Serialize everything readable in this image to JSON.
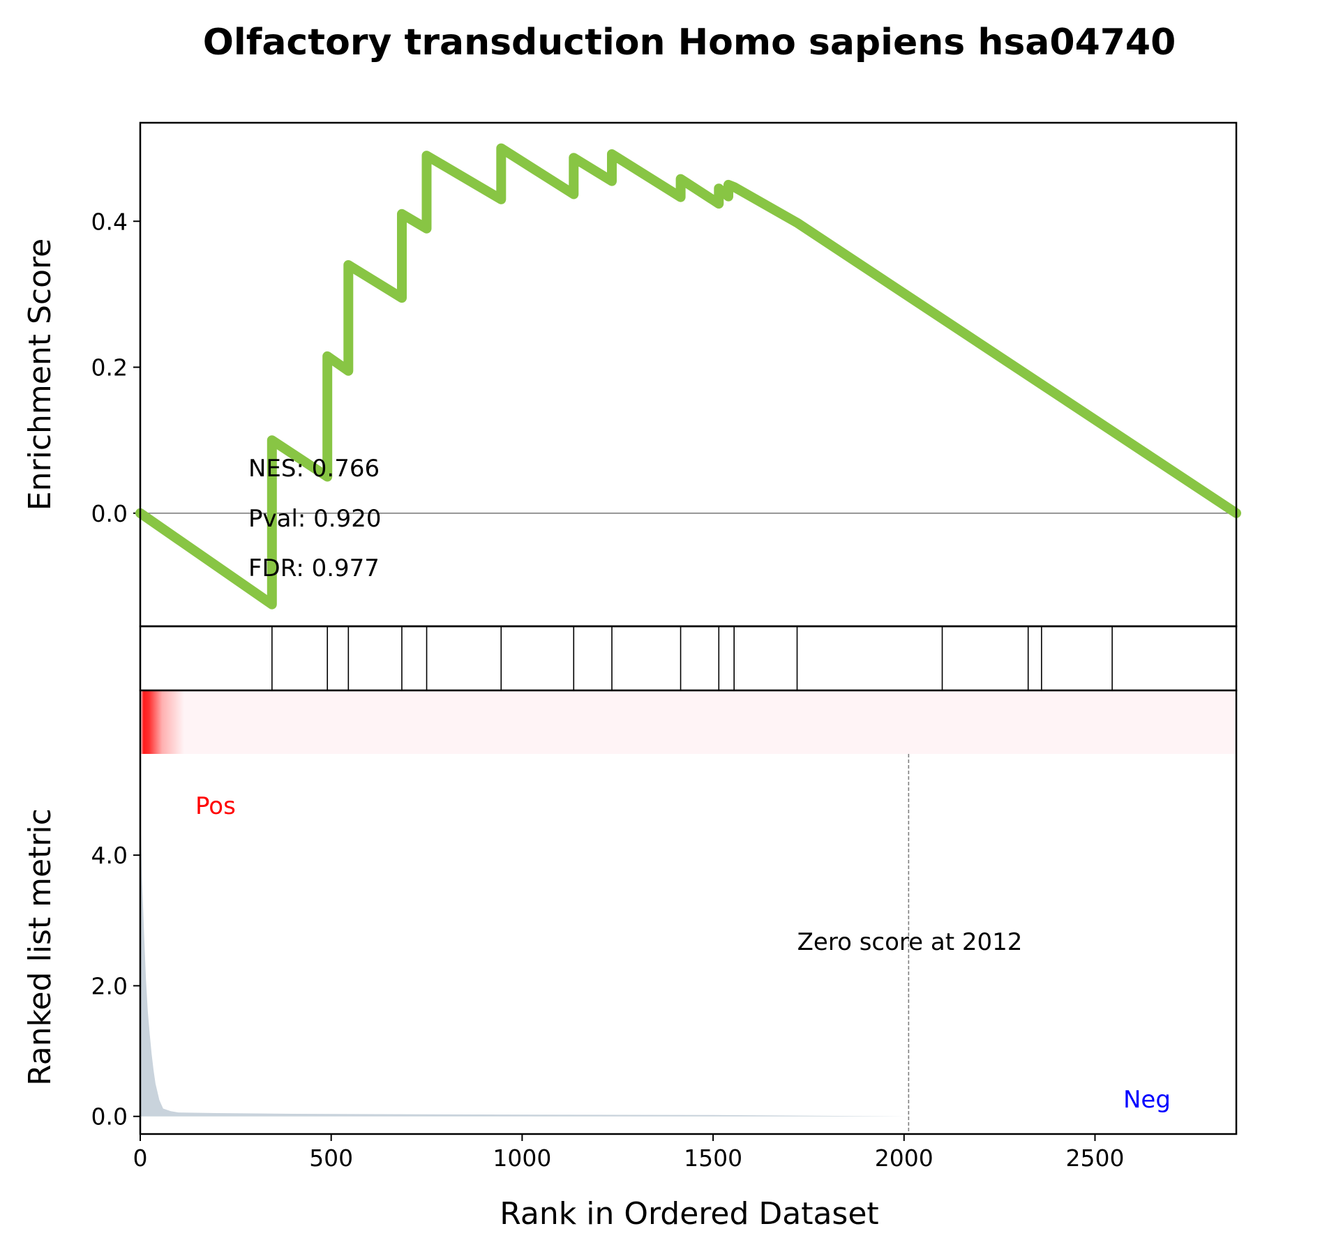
{
  "chart_data": {
    "type": "line",
    "title": "Olfactory transduction Homo sapiens hsa04740",
    "n_genes": 2870,
    "xlabel": "Rank in Ordered Dataset",
    "xlim": [
      0,
      2870
    ],
    "xticks": [
      0,
      500,
      1000,
      1500,
      2000,
      2500
    ],
    "xtick_labels": [
      "0",
      "500",
      "1000",
      "1500",
      "2000",
      "2500"
    ],
    "colors": {
      "es_line": "#88c544",
      "hits": "#000000",
      "metric_fill": "#c9d3dc",
      "pos_label": "#ff0000",
      "neg_label": "#0000ff",
      "heat_high": "#ff0000"
    },
    "es_panel": {
      "ylabel": "Enrichment Score",
      "ylim": [
        -0.155,
        0.535
      ],
      "yticks": [
        0.0,
        0.2,
        0.4
      ],
      "ytick_labels": [
        "0.0",
        "0.2",
        "0.4"
      ],
      "zero_line": true,
      "series": [
        {
          "name": "",
          "x": [
            0,
            345,
            345,
            490,
            490,
            545,
            545,
            685,
            685,
            750,
            750,
            945,
            945,
            1135,
            1135,
            1235,
            1235,
            1415,
            1415,
            1515,
            1515,
            1540,
            1540,
            1555,
            1555,
            1720,
            1720,
            2870
          ],
          "y": [
            0.0,
            -0.125,
            0.1,
            0.05,
            0.215,
            0.195,
            0.34,
            0.295,
            0.41,
            0.39,
            0.49,
            0.43,
            0.5,
            0.437,
            0.487,
            0.455,
            0.492,
            0.433,
            0.458,
            0.424,
            0.445,
            0.434,
            0.45,
            0.447,
            0.447,
            0.398,
            0.398,
            0.0
          ]
        }
      ],
      "stats": [
        {
          "key": "nes",
          "text": "NES: 0.766"
        },
        {
          "key": "pval",
          "text": "Pval: 0.920"
        },
        {
          "key": "fdr",
          "text": "FDR: 0.977"
        }
      ]
    },
    "hits_panel": {
      "hit_ranks": [
        345,
        490,
        545,
        685,
        750,
        945,
        1135,
        1235,
        1415,
        1515,
        1555,
        1720,
        2100,
        2325,
        2360,
        2545
      ]
    },
    "metric_panel": {
      "ylabel": "Ranked list metric",
      "ylim": [
        -0.27,
        5.55
      ],
      "yticks": [
        0.0,
        2.0,
        4.0
      ],
      "ytick_labels": [
        "0.0",
        "2.0",
        "4.0"
      ],
      "zero_cross_rank": 2012,
      "zero_label": "Zero score at 2012",
      "pos_label": "Pos",
      "neg_label": "Neg",
      "x": [
        0,
        2,
        5,
        10,
        15,
        20,
        25,
        30,
        35,
        40,
        50,
        60,
        80,
        100,
        200,
        400,
        800,
        1500,
        2012,
        2870
      ],
      "values": [
        5.1,
        4.3,
        3.6,
        2.8,
        2.1,
        1.6,
        1.25,
        0.95,
        0.7,
        0.5,
        0.25,
        0.12,
        0.08,
        0.06,
        0.05,
        0.04,
        0.03,
        0.02,
        0.0,
        0.0
      ]
    }
  }
}
